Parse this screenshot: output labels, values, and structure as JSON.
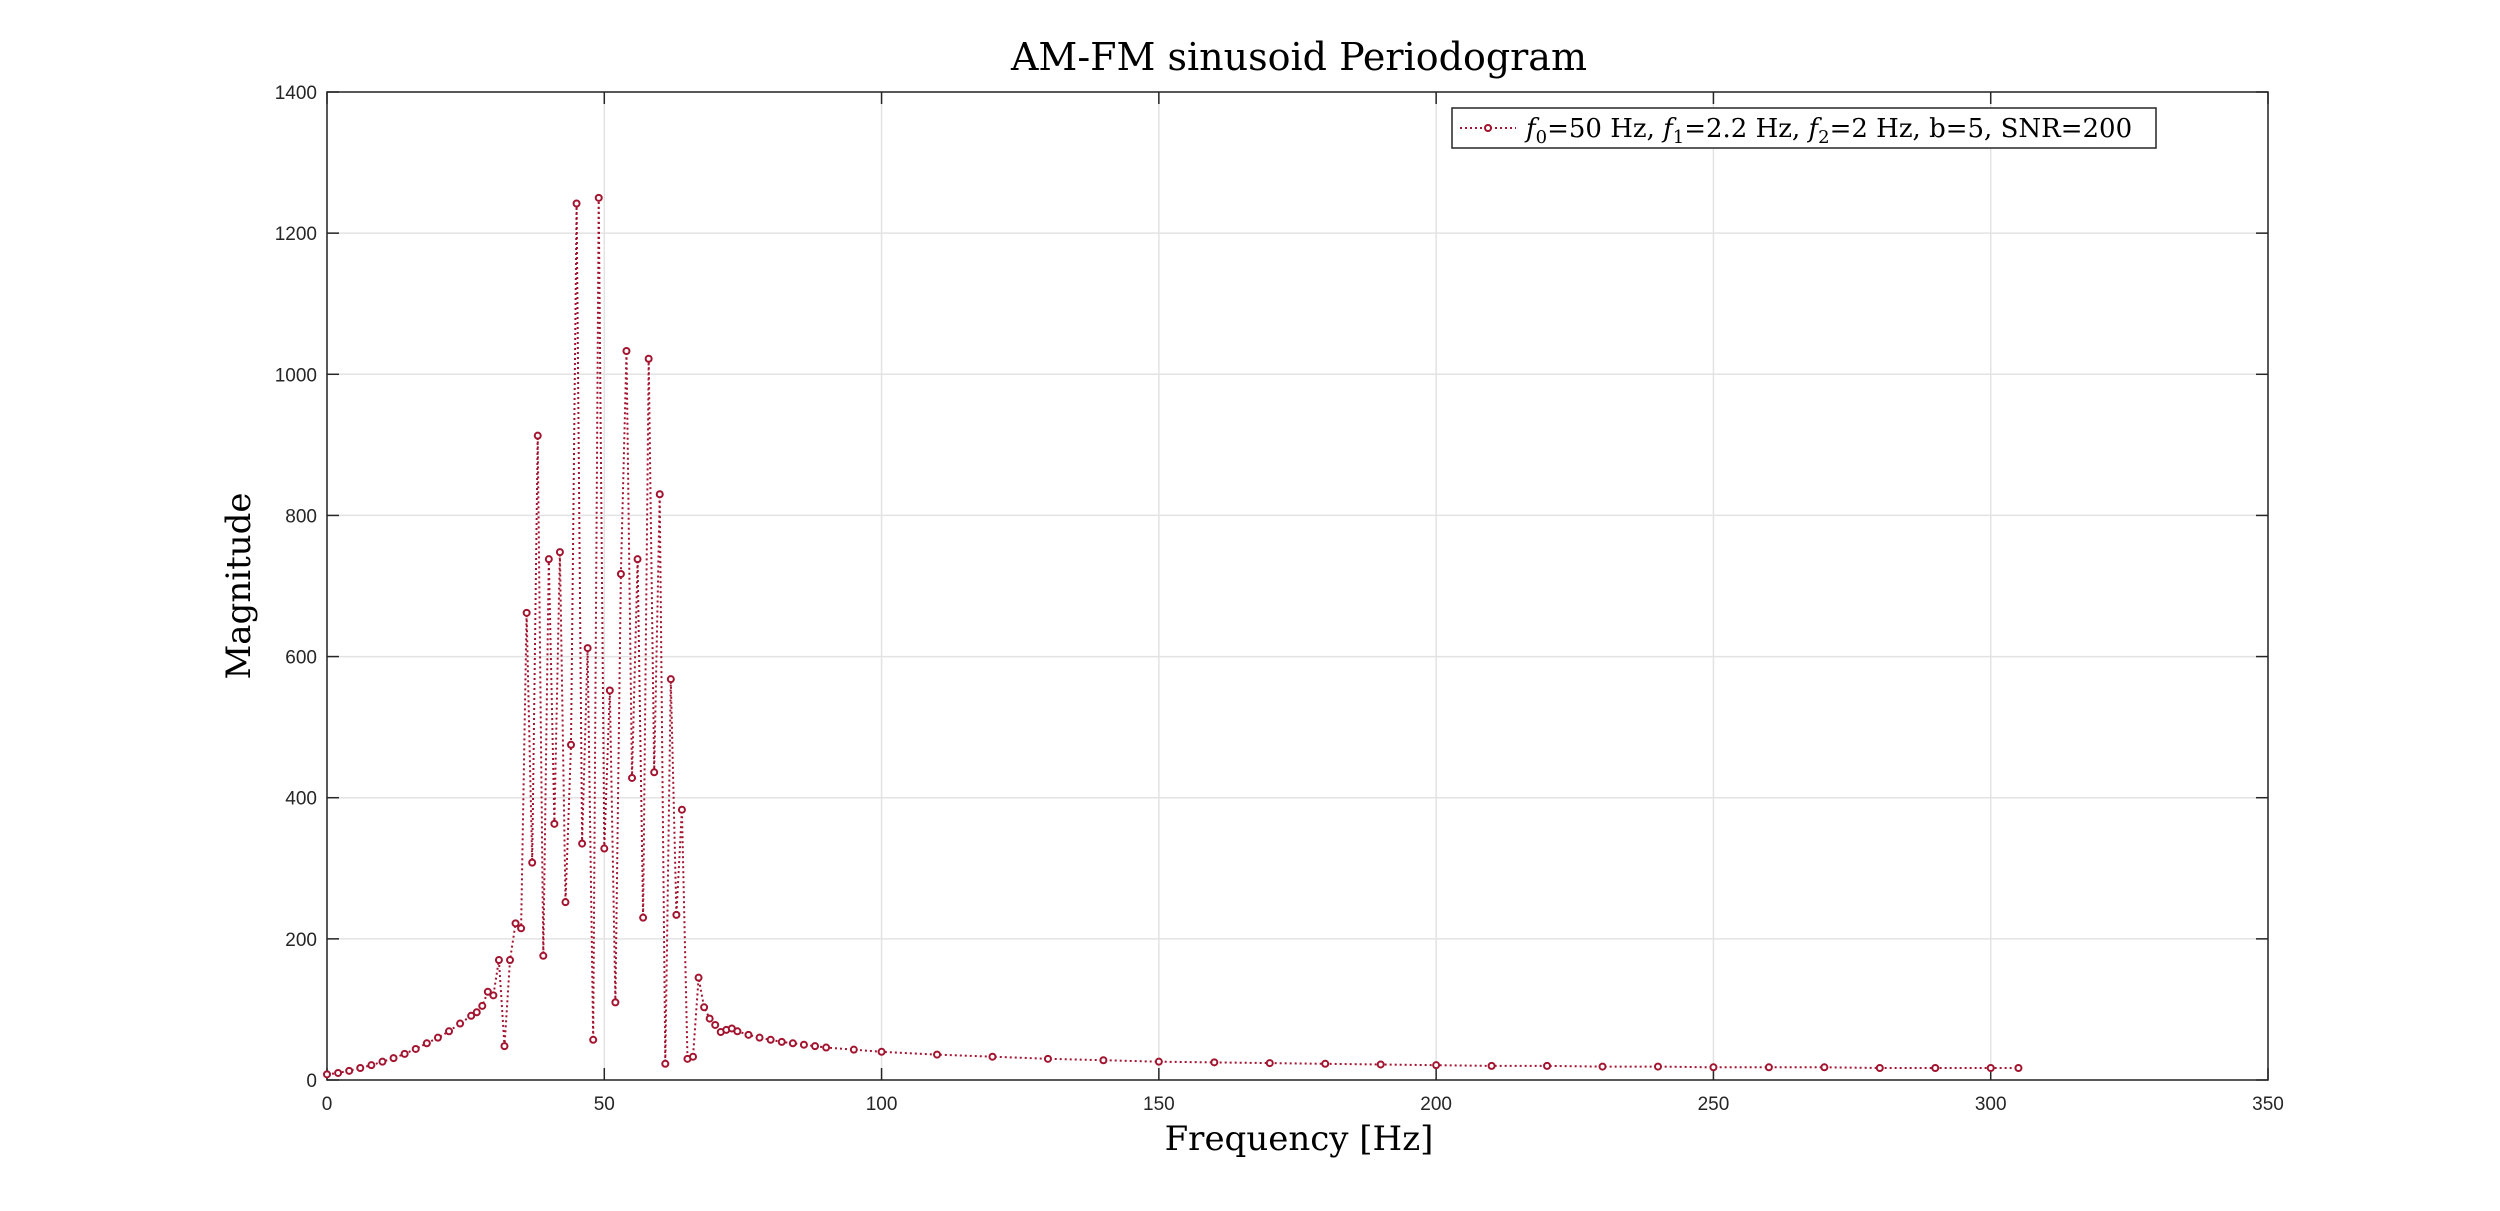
{
  "chart_data": {
    "type": "line",
    "title": "AM-FM sinusoid Periodogram",
    "xlabel": "Frequency [Hz]",
    "ylabel": "Magnitude",
    "xlim": [
      0,
      350
    ],
    "ylim": [
      0,
      1400
    ],
    "xticks": [
      0,
      50,
      100,
      150,
      200,
      250,
      300,
      350
    ],
    "yticks": [
      0,
      200,
      400,
      600,
      800,
      1000,
      1200,
      1400
    ],
    "grid": true,
    "legend_position": "top-right",
    "series_color": "#A2142F",
    "line_style": "dotted-with-markers",
    "series": [
      {
        "name_parts": [
          "f",
          "0",
          "=50 Hz, ",
          "f",
          "1",
          "=2.2 Hz, ",
          "f",
          "2",
          "=2 Hz, b=5, SNR=200"
        ],
        "points": [
          [
            0,
            8
          ],
          [
            2,
            10
          ],
          [
            4,
            13
          ],
          [
            6,
            17
          ],
          [
            8,
            21
          ],
          [
            10,
            26
          ],
          [
            12,
            31
          ],
          [
            14,
            37
          ],
          [
            16,
            44
          ],
          [
            18,
            52
          ],
          [
            20,
            60
          ],
          [
            22,
            69
          ],
          [
            24,
            80
          ],
          [
            26,
            91
          ],
          [
            27,
            96
          ],
          [
            28,
            105
          ],
          [
            29,
            125
          ],
          [
            30,
            120
          ],
          [
            31,
            170
          ],
          [
            32,
            48
          ],
          [
            33,
            170
          ],
          [
            34,
            222
          ],
          [
            35,
            215
          ],
          [
            36,
            662
          ],
          [
            37,
            308
          ],
          [
            38,
            913
          ],
          [
            39,
            176
          ],
          [
            40,
            738
          ],
          [
            41,
            363
          ],
          [
            42,
            748
          ],
          [
            43,
            252
          ],
          [
            44,
            475
          ],
          [
            45,
            1242
          ],
          [
            46,
            335
          ],
          [
            47,
            612
          ],
          [
            48,
            57
          ],
          [
            49,
            1250
          ],
          [
            50,
            328
          ],
          [
            51,
            552
          ],
          [
            52,
            110
          ],
          [
            53,
            717
          ],
          [
            54,
            1033
          ],
          [
            55,
            428
          ],
          [
            56,
            738
          ],
          [
            57,
            230
          ],
          [
            58,
            1022
          ],
          [
            59,
            436
          ],
          [
            60,
            830
          ],
          [
            61,
            23
          ],
          [
            62,
            568
          ],
          [
            63,
            234
          ],
          [
            64,
            383
          ],
          [
            65,
            30
          ],
          [
            66,
            33
          ],
          [
            67,
            145
          ],
          [
            68,
            103
          ],
          [
            69,
            87
          ],
          [
            70,
            78
          ],
          [
            71,
            68
          ],
          [
            72,
            71
          ],
          [
            73,
            73
          ],
          [
            74,
            69
          ],
          [
            76,
            64
          ],
          [
            78,
            60
          ],
          [
            80,
            57
          ],
          [
            82,
            54
          ],
          [
            84,
            52
          ],
          [
            86,
            50
          ],
          [
            88,
            48
          ],
          [
            90,
            46
          ],
          [
            95,
            43
          ],
          [
            100,
            40
          ],
          [
            110,
            36
          ],
          [
            120,
            33
          ],
          [
            130,
            30
          ],
          [
            140,
            28
          ],
          [
            150,
            26
          ],
          [
            160,
            25
          ],
          [
            170,
            24
          ],
          [
            180,
            23
          ],
          [
            190,
            22
          ],
          [
            200,
            21
          ],
          [
            210,
            20
          ],
          [
            220,
            20
          ],
          [
            230,
            19
          ],
          [
            240,
            19
          ],
          [
            250,
            18
          ],
          [
            260,
            18
          ],
          [
            270,
            18
          ],
          [
            280,
            17
          ],
          [
            290,
            17
          ],
          [
            300,
            17
          ],
          [
            305,
            17
          ]
        ]
      }
    ]
  }
}
